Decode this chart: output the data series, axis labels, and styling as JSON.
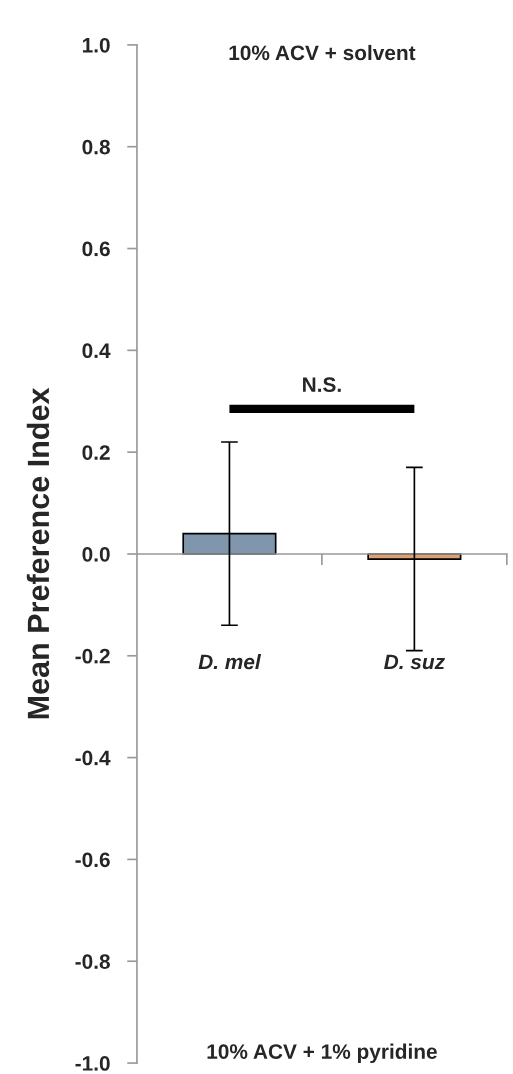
{
  "chart_data": {
    "type": "bar",
    "ylabel": "Mean Preference Index",
    "categories": [
      "D. mel",
      "D. suz"
    ],
    "values": [
      0.04,
      -0.01
    ],
    "errors": [
      0.18,
      0.18
    ],
    "colors": [
      "#7f96ad",
      "#e0a070"
    ],
    "ylim": [
      -1.0,
      1.0
    ],
    "yticks": [
      {
        "value": -1.0,
        "label": "-1.0"
      },
      {
        "value": -0.8,
        "label": "-0.8"
      },
      {
        "value": -0.6,
        "label": "-0.6"
      },
      {
        "value": -0.4,
        "label": "-0.4"
      },
      {
        "value": -0.2,
        "label": "-0.2"
      },
      {
        "value": 0.0,
        "label": "0.0"
      },
      {
        "value": 0.2,
        "label": "0.2"
      },
      {
        "value": 0.4,
        "label": "0.4"
      },
      {
        "value": 0.6,
        "label": "0.6"
      },
      {
        "value": 0.8,
        "label": "0.8"
      },
      {
        "value": 1.0,
        "label": "1.0"
      }
    ],
    "legend": false,
    "annotations": [
      "10% ACV + solvent",
      "10% ACV + 1% pyridine",
      "N.S."
    ]
  }
}
